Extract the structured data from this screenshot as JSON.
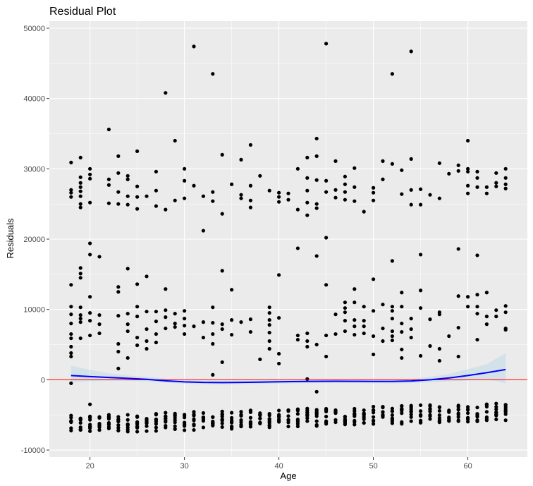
{
  "chart_data": {
    "type": "scatter",
    "title": "Residual Plot",
    "xlabel": "Age",
    "ylabel": "Residuals",
    "xlim": [
      15.7,
      66.3
    ],
    "ylim": [
      -11000,
      51000
    ],
    "x_ticks": [
      20,
      30,
      40,
      50,
      60
    ],
    "y_ticks": [
      -10000,
      0,
      10000,
      20000,
      30000,
      40000,
      50000
    ],
    "y_tick_labels": [
      "-10000",
      "0",
      "10000",
      "20000",
      "30000",
      "40000",
      "50000"
    ],
    "grid": true,
    "panel_color": "#ebebeb",
    "grid_color": "#ffffff",
    "point_color": "#000000",
    "reference_line": {
      "y": 0,
      "color": "#ff0000"
    },
    "smooth": {
      "color": "#0000ff",
      "band_color": "#a6cee3",
      "x": [
        18,
        20,
        22,
        24,
        26,
        28,
        30,
        32,
        34,
        36,
        38,
        40,
        42,
        44,
        46,
        48,
        50,
        52,
        54,
        56,
        58,
        60,
        62,
        64
      ],
      "y": [
        600,
        450,
        320,
        200,
        60,
        -150,
        -300,
        -380,
        -400,
        -380,
        -340,
        -290,
        -250,
        -230,
        -220,
        -230,
        -240,
        -240,
        -180,
        0,
        250,
        600,
        1000,
        1450
      ],
      "lower": [
        -300,
        -200,
        -150,
        -150,
        -230,
        -420,
        -560,
        -640,
        -660,
        -640,
        -600,
        -550,
        -500,
        -480,
        -470,
        -480,
        -500,
        -510,
        -480,
        -380,
        -250,
        -100,
        100,
        -500
      ],
      "upper": [
        2000,
        1400,
        900,
        600,
        400,
        150,
        -50,
        -120,
        -140,
        -120,
        -80,
        -30,
        0,
        20,
        30,
        20,
        20,
        40,
        120,
        400,
        800,
        1500,
        2200,
        3800
      ]
    },
    "points": [
      [
        18,
        30900
      ],
      [
        18,
        27000
      ],
      [
        18,
        26600
      ],
      [
        18,
        26000
      ],
      [
        18,
        13500
      ],
      [
        18,
        10400
      ],
      [
        18,
        9300
      ],
      [
        18,
        8000
      ],
      [
        18,
        6500
      ],
      [
        18,
        5900
      ],
      [
        18,
        4700
      ],
      [
        18,
        3800
      ],
      [
        18,
        3300
      ],
      [
        18,
        -500
      ],
      [
        19,
        31600
      ],
      [
        19,
        28800
      ],
      [
        19,
        28000
      ],
      [
        19,
        27400
      ],
      [
        19,
        26800
      ],
      [
        19,
        26100
      ],
      [
        19,
        25000
      ],
      [
        19,
        24500
      ],
      [
        19,
        15900
      ],
      [
        19,
        15100
      ],
      [
        19,
        14500
      ],
      [
        19,
        10300
      ],
      [
        19,
        9200
      ],
      [
        19,
        8700
      ],
      [
        19,
        8200
      ],
      [
        19,
        5900
      ],
      [
        20,
        30000
      ],
      [
        20,
        29200
      ],
      [
        20,
        28600
      ],
      [
        20,
        25200
      ],
      [
        20,
        19400
      ],
      [
        20,
        17800
      ],
      [
        20,
        11800
      ],
      [
        20,
        9500
      ],
      [
        20,
        8400
      ],
      [
        20,
        6300
      ],
      [
        20,
        -3500
      ],
      [
        21,
        17500
      ],
      [
        21,
        9200
      ],
      [
        21,
        7900
      ],
      [
        21,
        6600
      ],
      [
        22,
        35600
      ],
      [
        22,
        28500
      ],
      [
        22,
        27700
      ],
      [
        22,
        25100
      ],
      [
        23,
        31800
      ],
      [
        23,
        29400
      ],
      [
        23,
        26700
      ],
      [
        23,
        25000
      ],
      [
        23,
        13200
      ],
      [
        23,
        12500
      ],
      [
        23,
        9100
      ],
      [
        23,
        5100
      ],
      [
        23,
        4000
      ],
      [
        23,
        1600
      ],
      [
        24,
        29000
      ],
      [
        24,
        28500
      ],
      [
        24,
        26100
      ],
      [
        24,
        24900
      ],
      [
        24,
        15800
      ],
      [
        24,
        9400
      ],
      [
        24,
        7900
      ],
      [
        24,
        6900
      ],
      [
        24,
        3100
      ],
      [
        25,
        32500
      ],
      [
        25,
        27500
      ],
      [
        25,
        26000
      ],
      [
        25,
        24300
      ],
      [
        25,
        13600
      ],
      [
        25,
        10400
      ],
      [
        25,
        9000
      ],
      [
        25,
        6000
      ],
      [
        25,
        4900
      ],
      [
        26,
        26100
      ],
      [
        26,
        14700
      ],
      [
        26,
        9700
      ],
      [
        26,
        7200
      ],
      [
        26,
        5500
      ],
      [
        26,
        4400
      ],
      [
        27,
        29600
      ],
      [
        27,
        26900
      ],
      [
        27,
        24700
      ],
      [
        27,
        9700
      ],
      [
        27,
        8300
      ],
      [
        27,
        6500
      ],
      [
        27,
        5300
      ],
      [
        28,
        40800
      ],
      [
        28,
        24200
      ],
      [
        28,
        12900
      ],
      [
        28,
        9900
      ],
      [
        28,
        8900
      ],
      [
        28,
        7300
      ],
      [
        29,
        34000
      ],
      [
        29,
        25500
      ],
      [
        29,
        9400
      ],
      [
        29,
        8000
      ],
      [
        29,
        7500
      ],
      [
        30,
        30000
      ],
      [
        30,
        28300
      ],
      [
        30,
        25800
      ],
      [
        30,
        9800
      ],
      [
        30,
        8700
      ],
      [
        30,
        7700
      ],
      [
        30,
        6500
      ],
      [
        31,
        47400
      ],
      [
        31,
        27600
      ],
      [
        31,
        7600
      ],
      [
        32,
        21200
      ],
      [
        32,
        26100
      ],
      [
        32,
        8200
      ],
      [
        32,
        6000
      ],
      [
        33,
        43500
      ],
      [
        33,
        26700
      ],
      [
        33,
        25400
      ],
      [
        33,
        10300
      ],
      [
        33,
        8100
      ],
      [
        33,
        6500
      ],
      [
        33,
        5100
      ],
      [
        33,
        700
      ],
      [
        34,
        32000
      ],
      [
        34,
        23600
      ],
      [
        34,
        15500
      ],
      [
        34,
        7900
      ],
      [
        34,
        7200
      ],
      [
        34,
        2500
      ],
      [
        35,
        27800
      ],
      [
        35,
        12800
      ],
      [
        35,
        8500
      ],
      [
        35,
        6400
      ],
      [
        36,
        31300
      ],
      [
        36,
        26300
      ],
      [
        36,
        25800
      ],
      [
        36,
        8200
      ],
      [
        37,
        33400
      ],
      [
        37,
        27600
      ],
      [
        37,
        25500
      ],
      [
        37,
        24500
      ],
      [
        37,
        8600
      ],
      [
        37,
        6800
      ],
      [
        38,
        29000
      ],
      [
        38,
        2900
      ],
      [
        39,
        26900
      ],
      [
        39,
        10300
      ],
      [
        39,
        9500
      ],
      [
        39,
        8500
      ],
      [
        39,
        7800
      ],
      [
        39,
        6700
      ],
      [
        39,
        5500
      ],
      [
        39,
        4400
      ],
      [
        40,
        26600
      ],
      [
        40,
        26000
      ],
      [
        40,
        25300
      ],
      [
        40,
        14900
      ],
      [
        40,
        8800
      ],
      [
        40,
        3700
      ],
      [
        40,
        2300
      ],
      [
        41,
        26500
      ],
      [
        41,
        25600
      ],
      [
        42,
        30000
      ],
      [
        42,
        24200
      ],
      [
        42,
        18700
      ],
      [
        42,
        6300
      ],
      [
        42,
        5700
      ],
      [
        43,
        31600
      ],
      [
        43,
        28700
      ],
      [
        43,
        26900
      ],
      [
        43,
        25200
      ],
      [
        43,
        23400
      ],
      [
        43,
        6600
      ],
      [
        43,
        5500
      ],
      [
        43,
        4700
      ],
      [
        43,
        100
      ],
      [
        44,
        34300
      ],
      [
        44,
        31800
      ],
      [
        44,
        28400
      ],
      [
        44,
        25000
      ],
      [
        44,
        24400
      ],
      [
        44,
        17600
      ],
      [
        44,
        5000
      ],
      [
        44,
        -1700
      ],
      [
        45,
        47800
      ],
      [
        45,
        28300
      ],
      [
        45,
        26700
      ],
      [
        45,
        20200
      ],
      [
        45,
        13500
      ],
      [
        45,
        6300
      ],
      [
        45,
        3300
      ],
      [
        46,
        31100
      ],
      [
        46,
        27000
      ],
      [
        46,
        25900
      ],
      [
        46,
        9300
      ],
      [
        46,
        6500
      ],
      [
        47,
        28900
      ],
      [
        47,
        27800
      ],
      [
        47,
        26700
      ],
      [
        47,
        25600
      ],
      [
        47,
        11000
      ],
      [
        47,
        10200
      ],
      [
        47,
        9600
      ],
      [
        47,
        8400
      ],
      [
        47,
        6900
      ],
      [
        48,
        30100
      ],
      [
        48,
        27400
      ],
      [
        48,
        25400
      ],
      [
        48,
        12900
      ],
      [
        48,
        11000
      ],
      [
        48,
        8500
      ],
      [
        48,
        7600
      ],
      [
        48,
        6400
      ],
      [
        49,
        23900
      ],
      [
        49,
        10400
      ],
      [
        49,
        8400
      ],
      [
        49,
        7600
      ],
      [
        49,
        6600
      ],
      [
        50,
        27300
      ],
      [
        50,
        26600
      ],
      [
        50,
        25500
      ],
      [
        50,
        14300
      ],
      [
        50,
        9800
      ],
      [
        50,
        6200
      ],
      [
        50,
        3600
      ],
      [
        51,
        31100
      ],
      [
        51,
        28500
      ],
      [
        51,
        10700
      ],
      [
        51,
        7300
      ],
      [
        51,
        5500
      ],
      [
        52,
        43500
      ],
      [
        52,
        30700
      ],
      [
        52,
        16900
      ],
      [
        52,
        10400
      ],
      [
        52,
        9800
      ],
      [
        52,
        8700
      ],
      [
        52,
        6900
      ],
      [
        52,
        6200
      ],
      [
        52,
        5600
      ],
      [
        53,
        29800
      ],
      [
        53,
        26400
      ],
      [
        53,
        12400
      ],
      [
        53,
        10400
      ],
      [
        53,
        8000
      ],
      [
        53,
        6800
      ],
      [
        53,
        4300
      ],
      [
        53,
        3100
      ],
      [
        54,
        46700
      ],
      [
        54,
        31400
      ],
      [
        54,
        27000
      ],
      [
        54,
        24900
      ],
      [
        54,
        8700
      ],
      [
        54,
        7200
      ],
      [
        54,
        6000
      ],
      [
        55,
        27100
      ],
      [
        55,
        24900
      ],
      [
        55,
        17800
      ],
      [
        55,
        12700
      ],
      [
        55,
        10200
      ],
      [
        55,
        3400
      ],
      [
        56,
        26300
      ],
      [
        56,
        8600
      ],
      [
        56,
        4800
      ],
      [
        57,
        30800
      ],
      [
        57,
        25800
      ],
      [
        57,
        9600
      ],
      [
        57,
        9300
      ],
      [
        57,
        4400
      ],
      [
        57,
        2700
      ],
      [
        58,
        29300
      ],
      [
        58,
        6200
      ],
      [
        59,
        30500
      ],
      [
        59,
        29700
      ],
      [
        59,
        18600
      ],
      [
        59,
        11900
      ],
      [
        59,
        7400
      ],
      [
        59,
        3300
      ],
      [
        60,
        34000
      ],
      [
        60,
        30000
      ],
      [
        60,
        29600
      ],
      [
        60,
        27600
      ],
      [
        60,
        26500
      ],
      [
        60,
        11800
      ],
      [
        60,
        10400
      ],
      [
        61,
        29600
      ],
      [
        61,
        28700
      ],
      [
        61,
        27400
      ],
      [
        61,
        17700
      ],
      [
        61,
        12100
      ],
      [
        61,
        10400
      ],
      [
        61,
        9400
      ],
      [
        61,
        5700
      ],
      [
        62,
        27400
      ],
      [
        62,
        26500
      ],
      [
        62,
        12400
      ],
      [
        62,
        9000
      ],
      [
        62,
        7900
      ],
      [
        63,
        29400
      ],
      [
        63,
        28000
      ],
      [
        63,
        27500
      ],
      [
        63,
        9900
      ],
      [
        63,
        9000
      ],
      [
        64,
        30000
      ],
      [
        64,
        28700
      ],
      [
        64,
        27800
      ],
      [
        64,
        27200
      ],
      [
        64,
        10500
      ],
      [
        64,
        9600
      ],
      [
        64,
        7300
      ],
      [
        64,
        7100
      ]
    ]
  }
}
